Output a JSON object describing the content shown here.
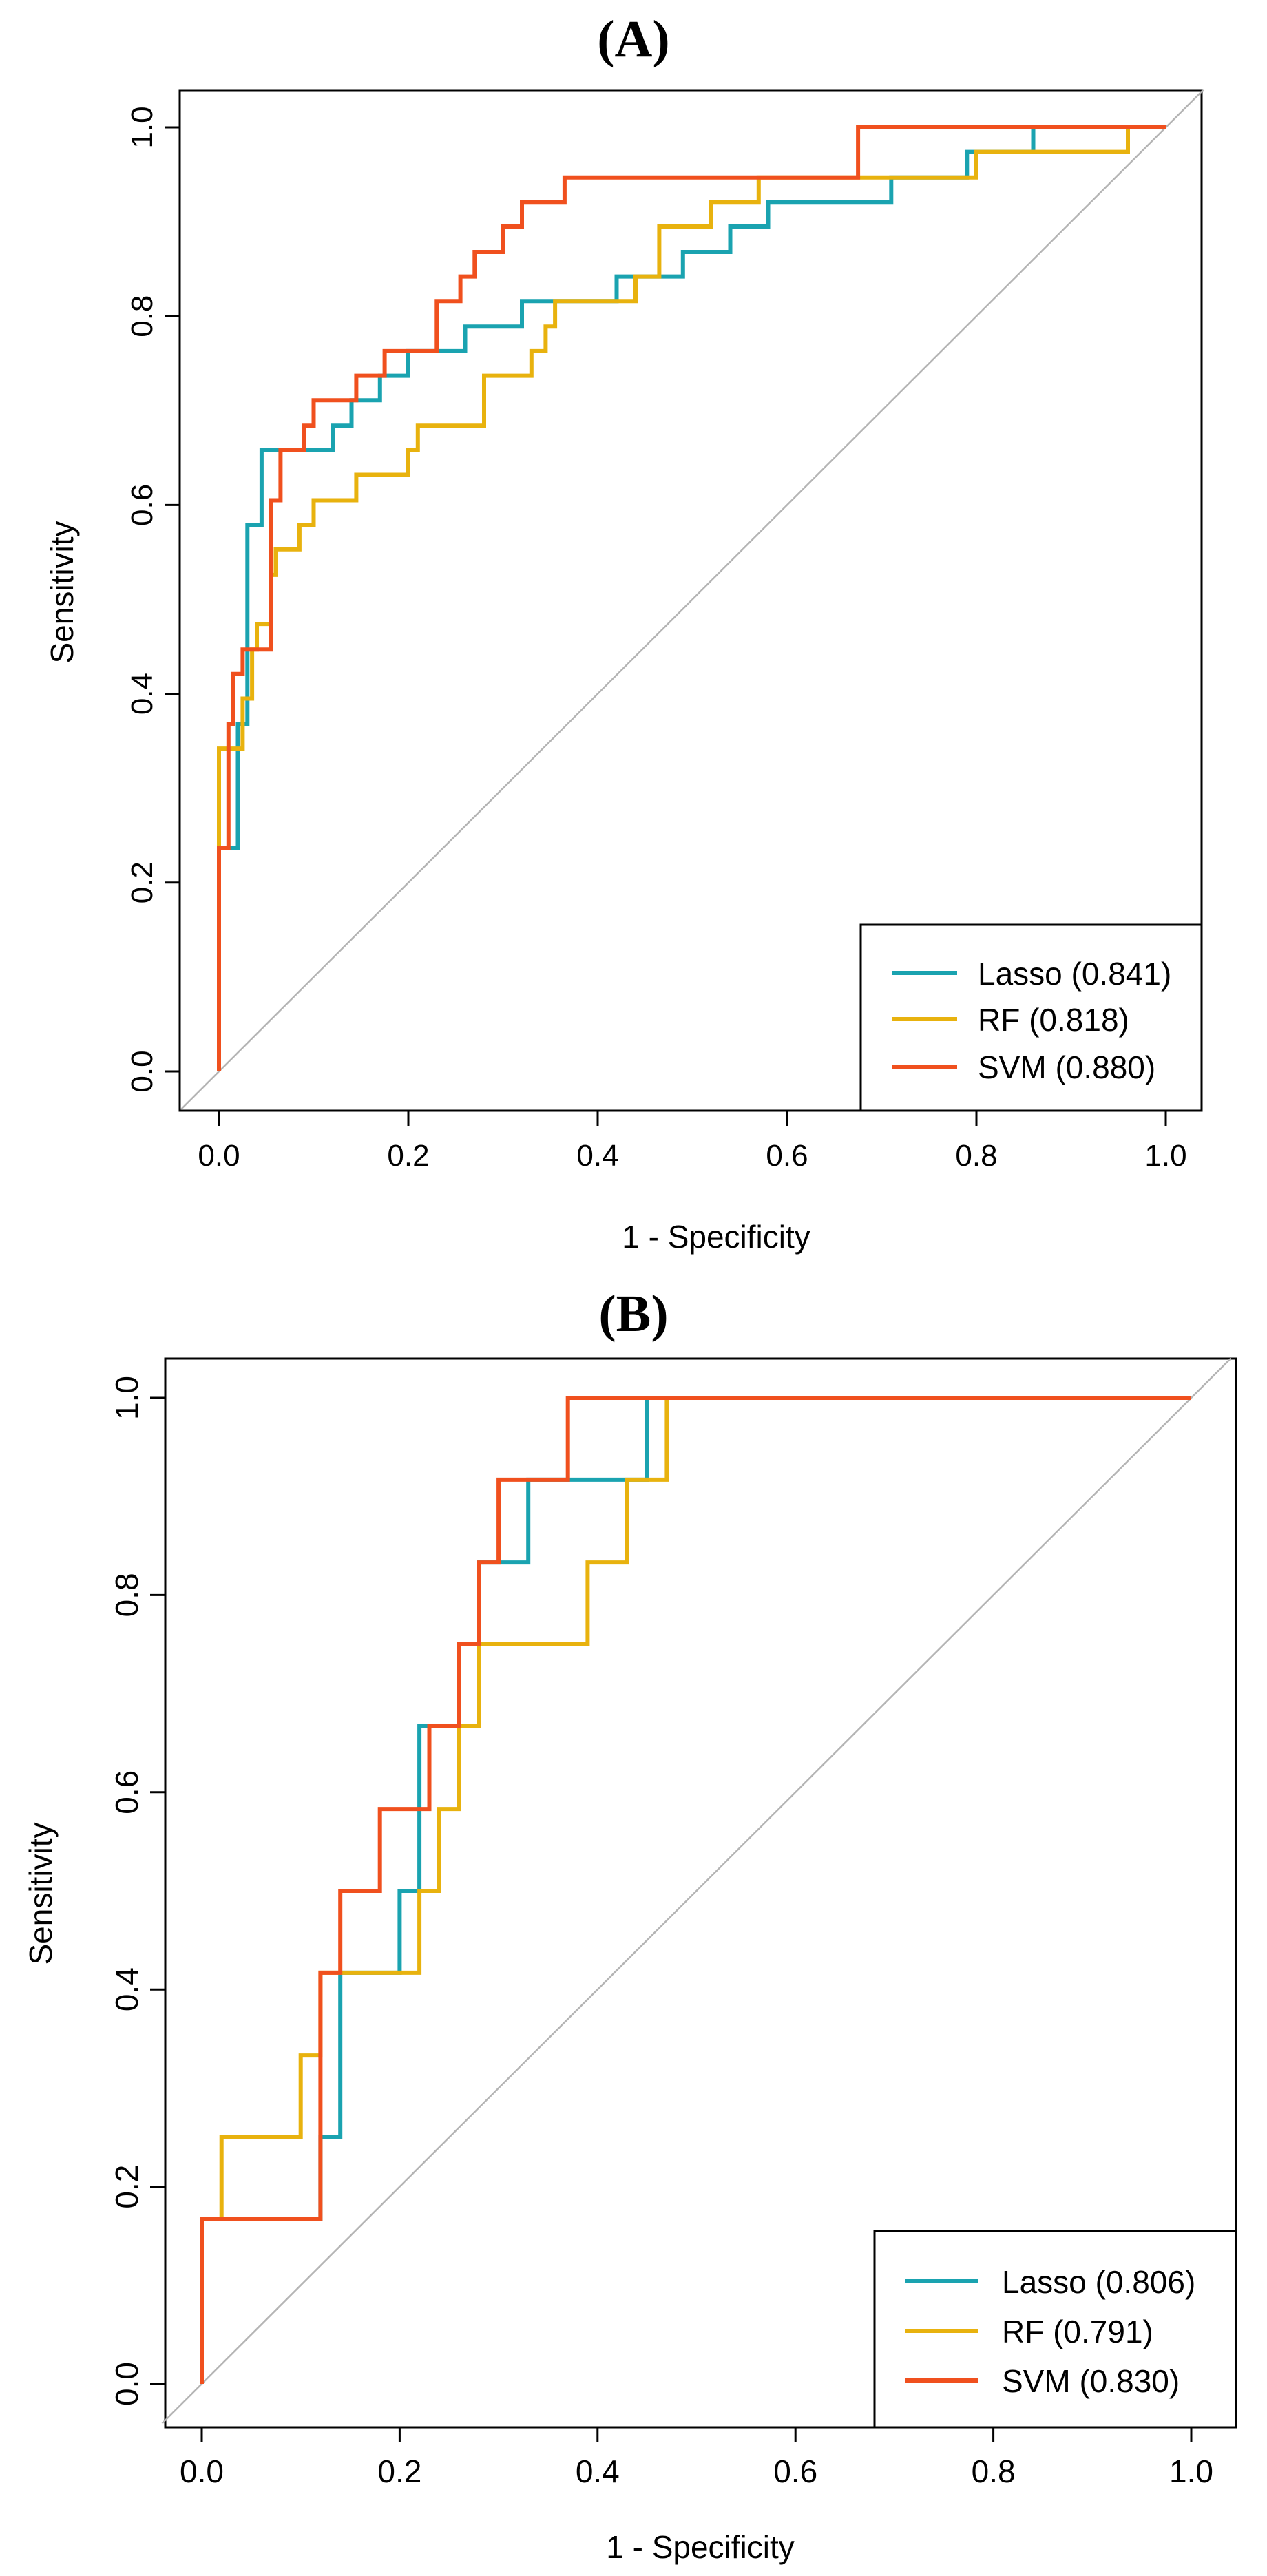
{
  "colors": {
    "lasso": "#1aa3b0",
    "rf": "#e8b20e",
    "svm": "#f0501e",
    "diagonal": "#b4b4b4",
    "axis": "#000000"
  },
  "chart_data": [
    {
      "type": "line",
      "panel_label": "(A)",
      "xlabel": "1 - Specificity",
      "ylabel": "Sensitivity",
      "xlim": [
        0,
        1
      ],
      "ylim": [
        0,
        1
      ],
      "xticks": [
        "0.0",
        "0.2",
        "0.4",
        "0.6",
        "0.8",
        "1.0"
      ],
      "yticks": [
        "0.0",
        "0.2",
        "0.4",
        "0.6",
        "0.8",
        "1.0"
      ],
      "reference_line": "diagonal",
      "legend_position": "bottom-right",
      "series": [
        {
          "name": "Lasso",
          "label": "Lasso (0.841)",
          "auc": 0.841,
          "color_key": "lasso",
          "points": [
            [
              0,
              0
            ],
            [
              0,
              0.237
            ],
            [
              0.02,
              0.237
            ],
            [
              0.02,
              0.368
            ],
            [
              0.03,
              0.368
            ],
            [
              0.03,
              0.579
            ],
            [
              0.045,
              0.579
            ],
            [
              0.045,
              0.658
            ],
            [
              0.12,
              0.658
            ],
            [
              0.12,
              0.684
            ],
            [
              0.14,
              0.684
            ],
            [
              0.14,
              0.711
            ],
            [
              0.17,
              0.711
            ],
            [
              0.17,
              0.737
            ],
            [
              0.2,
              0.737
            ],
            [
              0.2,
              0.763
            ],
            [
              0.23,
              0.763
            ],
            [
              0.23,
              0.763
            ],
            [
              0.26,
              0.763
            ],
            [
              0.26,
              0.789
            ],
            [
              0.32,
              0.789
            ],
            [
              0.32,
              0.816
            ],
            [
              0.42,
              0.816
            ],
            [
              0.42,
              0.842
            ],
            [
              0.49,
              0.842
            ],
            [
              0.49,
              0.868
            ],
            [
              0.54,
              0.868
            ],
            [
              0.54,
              0.895
            ],
            [
              0.58,
              0.895
            ],
            [
              0.58,
              0.921
            ],
            [
              0.71,
              0.921
            ],
            [
              0.71,
              0.947
            ],
            [
              0.79,
              0.947
            ],
            [
              0.79,
              0.974
            ],
            [
              0.86,
              0.974
            ],
            [
              0.86,
              1.0
            ],
            [
              1.0,
              1.0
            ]
          ]
        },
        {
          "name": "RF",
          "label": "RF (0.818)",
          "auc": 0.818,
          "color_key": "rf",
          "points": [
            [
              0,
              0
            ],
            [
              0,
              0.342
            ],
            [
              0.01,
              0.342
            ],
            [
              0.025,
              0.342
            ],
            [
              0.025,
              0.395
            ],
            [
              0.035,
              0.395
            ],
            [
              0.035,
              0.447
            ],
            [
              0.04,
              0.447
            ],
            [
              0.04,
              0.474
            ],
            [
              0.055,
              0.474
            ],
            [
              0.055,
              0.526
            ],
            [
              0.06,
              0.526
            ],
            [
              0.06,
              0.553
            ],
            [
              0.085,
              0.553
            ],
            [
              0.085,
              0.579
            ],
            [
              0.1,
              0.579
            ],
            [
              0.1,
              0.605
            ],
            [
              0.145,
              0.605
            ],
            [
              0.145,
              0.632
            ],
            [
              0.2,
              0.632
            ],
            [
              0.2,
              0.658
            ],
            [
              0.21,
              0.658
            ],
            [
              0.21,
              0.684
            ],
            [
              0.28,
              0.684
            ],
            [
              0.28,
              0.737
            ],
            [
              0.33,
              0.737
            ],
            [
              0.33,
              0.763
            ],
            [
              0.345,
              0.763
            ],
            [
              0.345,
              0.789
            ],
            [
              0.355,
              0.789
            ],
            [
              0.355,
              0.816
            ],
            [
              0.44,
              0.816
            ],
            [
              0.44,
              0.842
            ],
            [
              0.465,
              0.842
            ],
            [
              0.465,
              0.895
            ],
            [
              0.52,
              0.895
            ],
            [
              0.52,
              0.921
            ],
            [
              0.57,
              0.921
            ],
            [
              0.57,
              0.947
            ],
            [
              0.8,
              0.947
            ],
            [
              0.8,
              0.974
            ],
            [
              0.96,
              0.974
            ],
            [
              0.96,
              1.0
            ],
            [
              1.0,
              1.0
            ]
          ]
        },
        {
          "name": "SVM",
          "label": "SVM (0.880)",
          "auc": 0.88,
          "color_key": "svm",
          "points": [
            [
              0,
              0
            ],
            [
              0,
              0.237
            ],
            [
              0.01,
              0.237
            ],
            [
              0.01,
              0.368
            ],
            [
              0.015,
              0.368
            ],
            [
              0.015,
              0.421
            ],
            [
              0.025,
              0.421
            ],
            [
              0.025,
              0.447
            ],
            [
              0.055,
              0.447
            ],
            [
              0.055,
              0.605
            ],
            [
              0.065,
              0.605
            ],
            [
              0.065,
              0.658
            ],
            [
              0.09,
              0.658
            ],
            [
              0.09,
              0.684
            ],
            [
              0.1,
              0.684
            ],
            [
              0.1,
              0.711
            ],
            [
              0.145,
              0.711
            ],
            [
              0.145,
              0.737
            ],
            [
              0.175,
              0.737
            ],
            [
              0.175,
              0.763
            ],
            [
              0.23,
              0.763
            ],
            [
              0.23,
              0.816
            ],
            [
              0.255,
              0.816
            ],
            [
              0.255,
              0.842
            ],
            [
              0.27,
              0.842
            ],
            [
              0.27,
              0.868
            ],
            [
              0.3,
              0.868
            ],
            [
              0.3,
              0.895
            ],
            [
              0.32,
              0.895
            ],
            [
              0.32,
              0.921
            ],
            [
              0.365,
              0.921
            ],
            [
              0.365,
              0.947
            ],
            [
              0.675,
              0.947
            ],
            [
              0.675,
              1.0
            ],
            [
              1.0,
              1.0
            ]
          ]
        }
      ]
    },
    {
      "type": "line",
      "panel_label": "(B)",
      "xlabel": "1 - Specificity",
      "ylabel": "Sensitivity",
      "xlim": [
        0,
        1
      ],
      "ylim": [
        0,
        1
      ],
      "xticks": [
        "0.0",
        "0.2",
        "0.4",
        "0.6",
        "0.8",
        "1.0"
      ],
      "yticks": [
        "0.0",
        "0.2",
        "0.4",
        "0.6",
        "0.8",
        "1.0"
      ],
      "reference_line": "diagonal",
      "legend_position": "bottom-right",
      "series": [
        {
          "name": "Lasso",
          "label": "Lasso (0.806)",
          "auc": 0.806,
          "color_key": "lasso",
          "points": [
            [
              0,
              0
            ],
            [
              0,
              0.167
            ],
            [
              0.12,
              0.167
            ],
            [
              0.12,
              0.25
            ],
            [
              0.14,
              0.25
            ],
            [
              0.14,
              0.417
            ],
            [
              0.2,
              0.417
            ],
            [
              0.2,
              0.5
            ],
            [
              0.22,
              0.5
            ],
            [
              0.22,
              0.667
            ],
            [
              0.24,
              0.667
            ],
            [
              0.24,
              0.667
            ],
            [
              0.26,
              0.667
            ],
            [
              0.26,
              0.75
            ],
            [
              0.28,
              0.75
            ],
            [
              0.28,
              0.833
            ],
            [
              0.33,
              0.833
            ],
            [
              0.33,
              0.917
            ],
            [
              0.45,
              0.917
            ],
            [
              0.45,
              1.0
            ],
            [
              1.0,
              1.0
            ]
          ]
        },
        {
          "name": "RF",
          "label": "RF (0.791)",
          "auc": 0.791,
          "color_key": "rf",
          "points": [
            [
              0,
              0
            ],
            [
              0,
              0.167
            ],
            [
              0.02,
              0.167
            ],
            [
              0.02,
              0.25
            ],
            [
              0.1,
              0.25
            ],
            [
              0.1,
              0.333
            ],
            [
              0.12,
              0.333
            ],
            [
              0.12,
              0.417
            ],
            [
              0.22,
              0.417
            ],
            [
              0.22,
              0.5
            ],
            [
              0.24,
              0.5
            ],
            [
              0.24,
              0.583
            ],
            [
              0.26,
              0.583
            ],
            [
              0.26,
              0.667
            ],
            [
              0.28,
              0.667
            ],
            [
              0.28,
              0.75
            ],
            [
              0.39,
              0.75
            ],
            [
              0.39,
              0.833
            ],
            [
              0.43,
              0.833
            ],
            [
              0.43,
              0.917
            ],
            [
              0.47,
              0.917
            ],
            [
              0.47,
              1.0
            ],
            [
              1.0,
              1.0
            ]
          ]
        },
        {
          "name": "SVM",
          "label": "SVM (0.830)",
          "auc": 0.83,
          "color_key": "svm",
          "points": [
            [
              0,
              0
            ],
            [
              0,
              0.167
            ],
            [
              0.12,
              0.167
            ],
            [
              0.12,
              0.417
            ],
            [
              0.14,
              0.417
            ],
            [
              0.14,
              0.5
            ],
            [
              0.18,
              0.5
            ],
            [
              0.18,
              0.583
            ],
            [
              0.23,
              0.583
            ],
            [
              0.23,
              0.667
            ],
            [
              0.26,
              0.667
            ],
            [
              0.26,
              0.75
            ],
            [
              0.28,
              0.75
            ],
            [
              0.28,
              0.833
            ],
            [
              0.3,
              0.833
            ],
            [
              0.3,
              0.917
            ],
            [
              0.37,
              0.917
            ],
            [
              0.37,
              1.0
            ],
            [
              1.0,
              1.0
            ]
          ]
        }
      ]
    }
  ]
}
